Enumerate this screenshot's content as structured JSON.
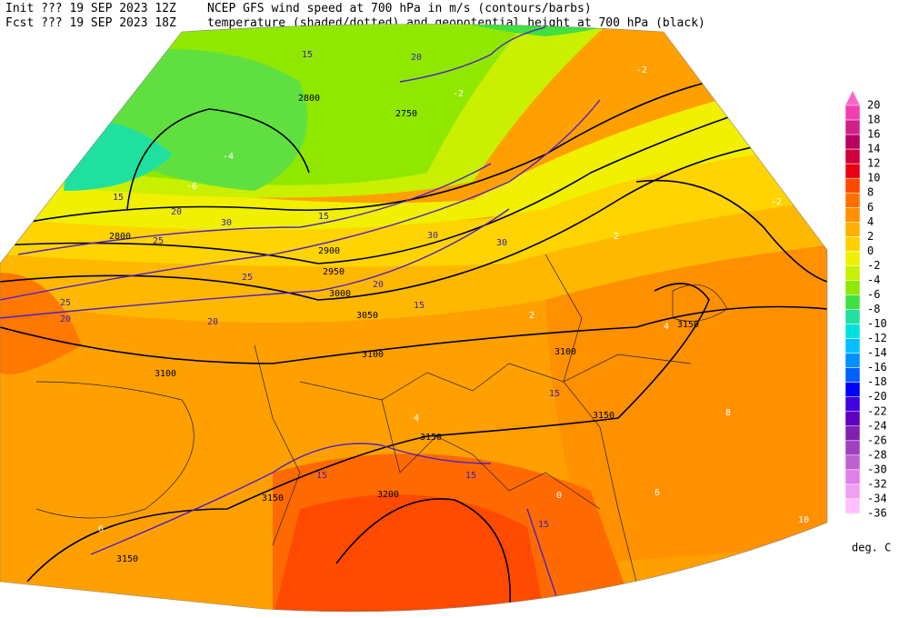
{
  "header": {
    "init": "Init  ??? 19 SEP 2023 12Z",
    "fcst": "Fcst ??? 19 SEP 2023 18Z",
    "title_1": "NCEP GFS wind speed at 700 hPa in m/s (contours/barbs)",
    "title_2": "temperature (shaded/dotted) and geopotential height at 700 hPa (black)"
  },
  "colorbar": {
    "labels": [
      20,
      18,
      16,
      14,
      12,
      10,
      8,
      6,
      4,
      2,
      0,
      -2,
      -4,
      -6,
      -8,
      -10,
      -12,
      -14,
      -16,
      -18,
      -20,
      -22,
      -24,
      -26,
      -28,
      -30,
      -32,
      -34,
      -36
    ],
    "colors": [
      "#ff66cc",
      "#f040b0",
      "#d0208a",
      "#b80060",
      "#d0003a",
      "#e80010",
      "#ff4800",
      "#ff7000",
      "#ff9000",
      "#ffb000",
      "#ffd000",
      "#f0f000",
      "#c8f000",
      "#90e800",
      "#40e040",
      "#20e0a0",
      "#00e0e0",
      "#00c0ff",
      "#0090ff",
      "#0060ff",
      "#0000ff",
      "#4000e0",
      "#6000c0",
      "#8020b0",
      "#a040c0",
      "#c060d0",
      "#e080e8",
      "#f0a0f0",
      "#ffc0ff"
    ],
    "unit": "deg. C"
  },
  "height_labels": [
    "2800",
    "2750",
    "2800",
    "2900",
    "2950",
    "3000",
    "3050",
    "3100",
    "3100",
    "3100",
    "3150",
    "3150",
    "3150",
    "3200",
    "3150",
    "3150"
  ],
  "wind_labels": [
    "15",
    "20",
    "20",
    "25",
    "30",
    "30",
    "20",
    "15",
    "15",
    "15",
    "20",
    "25",
    "15",
    "15",
    "15",
    "20",
    "15",
    "30",
    "25"
  ],
  "temp_labels": [
    "-4",
    "-6",
    "-2",
    "-2",
    "2",
    "2",
    "4",
    "4",
    "6",
    "8",
    "10",
    "6",
    "-2",
    "0"
  ]
}
